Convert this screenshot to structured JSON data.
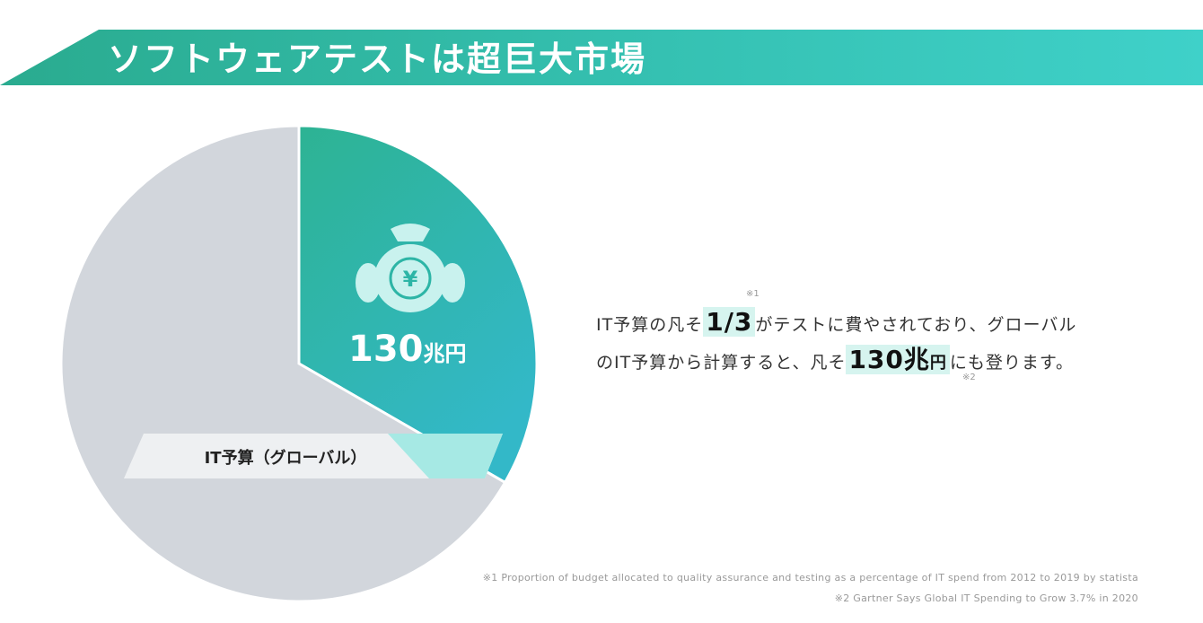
{
  "header": {
    "title": "ソフトウェアテストは超巨大市場"
  },
  "chart_data": {
    "type": "pie",
    "slices": [
      {
        "label": "",
        "fraction": 0.3333,
        "color": "#2fb5a8",
        "value_label": "130",
        "value_unit": "兆円",
        "icon": "money-bag-yen-icon"
      },
      {
        "label": "IT予算（グローバル）",
        "fraction": 0.6667,
        "color": "#d2d6dc"
      }
    ],
    "icon_symbol": "¥"
  },
  "description": {
    "line1_a": "IT予算の凡そ",
    "line1_hl": "1/3",
    "line1_b": "がテストに費やされており、グローバル",
    "line2_a": "のIT予算から計算すると、凡そ",
    "line2_hl": "130兆",
    "line2_hl_sub": "円",
    "line2_b": "にも登ります。",
    "note1_mark": "※1",
    "note2_mark": "※2"
  },
  "footnotes": {
    "fn1": "※1 Proportion of budget allocated to quality assurance and testing as a percentage of IT spend from 2012 to 2019 by statista",
    "fn2": "※2 Gartner Says Global IT Spending to Grow 3.7% in 2020"
  }
}
